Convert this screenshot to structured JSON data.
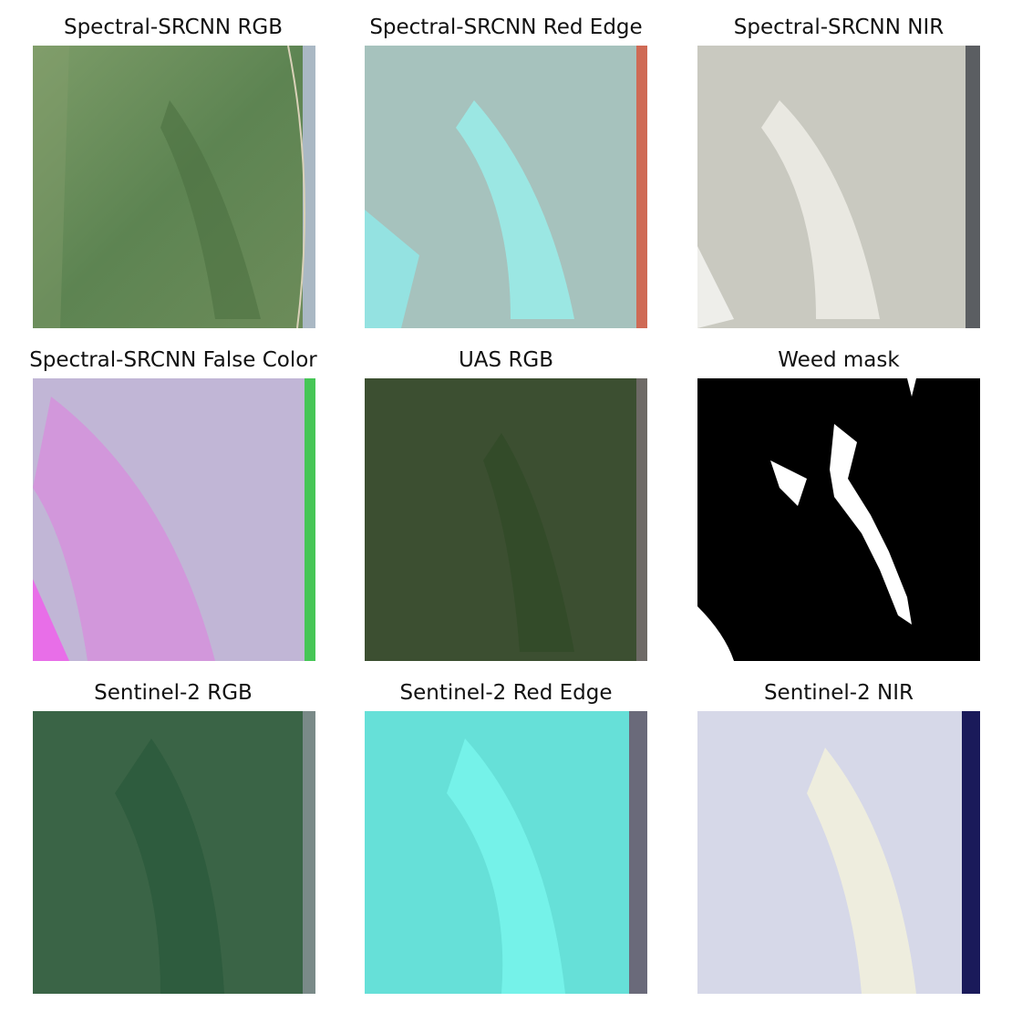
{
  "figure": {
    "panels": [
      {
        "title": "Spectral-SRCNN RGB",
        "kind": "srcnn_rgb"
      },
      {
        "title": "Spectral-SRCNN Red Edge",
        "kind": "srcnn_rededge"
      },
      {
        "title": "Spectral-SRCNN NIR",
        "kind": "srcnn_nir"
      },
      {
        "title": "Spectral-SRCNN False Color",
        "kind": "srcnn_false"
      },
      {
        "title": "UAS RGB",
        "kind": "uas_rgb"
      },
      {
        "title": "Weed mask",
        "kind": "weed_mask"
      },
      {
        "title": "Sentinel-2 RGB",
        "kind": "s2_rgb"
      },
      {
        "title": "Sentinel-2 Red Edge",
        "kind": "s2_rededge"
      },
      {
        "title": "Sentinel-2 NIR",
        "kind": "s2_nir"
      }
    ]
  },
  "colors": {
    "srcnn_rgb": [
      "#7a9a66",
      "#5f8453",
      "#4d7646"
    ],
    "srcnn_rededge": [
      "#8fe6e2",
      "#c99a8a",
      "#cf6a55"
    ],
    "srcnn_nir": [
      "#cfcfc6",
      "#e9e8e1",
      "#5b5e62"
    ],
    "srcnn_false": [
      "#c3b8d8",
      "#e27ae0",
      "#46c656"
    ],
    "uas_rgb": [
      "#3e5032",
      "#334a2a",
      "#6e6a66"
    ],
    "weed_mask": [
      "#000000",
      "#ffffff"
    ],
    "s2_rgb": [
      "#3a6446",
      "#2c5a3c",
      "#7a8a88"
    ],
    "s2_rededge": [
      "#66e0d8",
      "#78f4ec",
      "#6a6a7a"
    ],
    "s2_nir": [
      "#d6d8e8",
      "#f1f0dd",
      "#1a1a5a"
    ]
  }
}
